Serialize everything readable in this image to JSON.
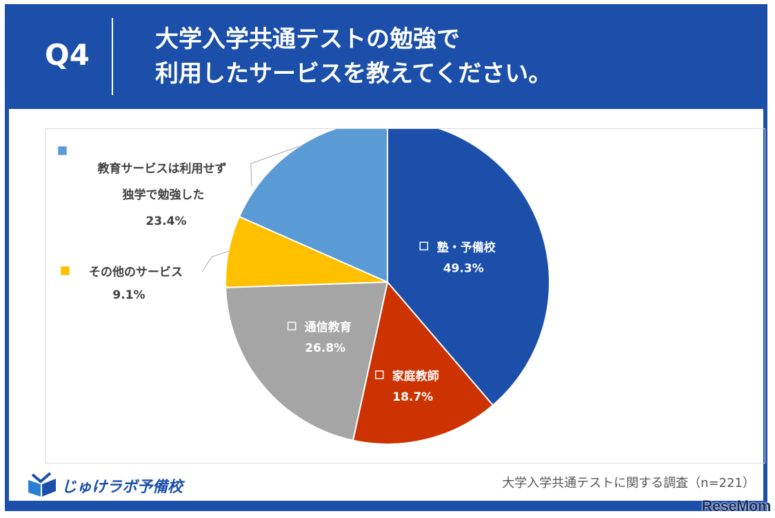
{
  "header": {
    "q_label": "Q4",
    "question_line1": "大学入学共通テストの勉強で",
    "question_line2": "利用したサービスを教えてください。"
  },
  "footer": {
    "logo_text": "じゅけラボ予備校",
    "note": "大学入学共通テストに関する調査（n=221）",
    "watermark": "ReseMom"
  },
  "chart_data": {
    "type": "pie",
    "title": "",
    "slices": [
      {
        "name": "塾・予備校",
        "value": 49.3,
        "label": "49.3%",
        "color": "#1b4faa"
      },
      {
        "name": "家庭教師",
        "value": 18.7,
        "label": "18.7%",
        "color": "#cc3300"
      },
      {
        "name": "通信教育",
        "value": 26.8,
        "label": "26.8%",
        "color": "#a5a5a5"
      },
      {
        "name": "その他のサービス",
        "value": 9.1,
        "label": "9.1%",
        "color": "#ffc000"
      },
      {
        "name_lines": [
          "教育サービスは利用せず",
          "独学で勉強した"
        ],
        "value": 23.4,
        "label": "23.4%",
        "color": "#5b9bd5"
      }
    ]
  }
}
